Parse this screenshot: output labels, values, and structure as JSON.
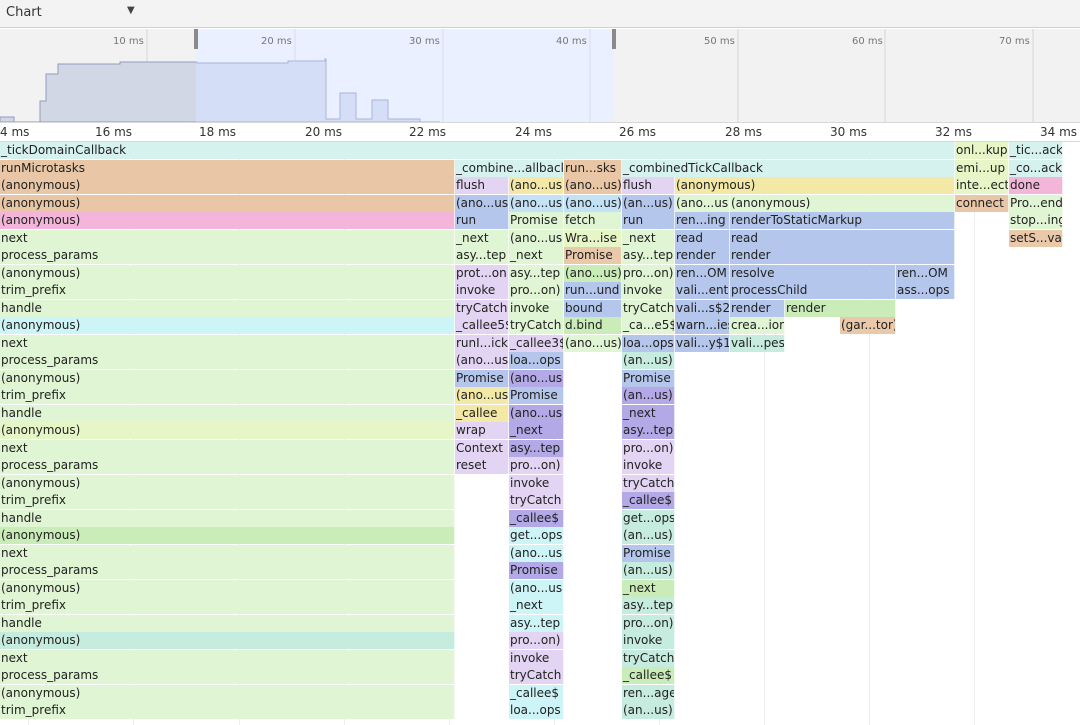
{
  "toolbar": {
    "view_select": "Chart"
  },
  "overview": {
    "ticks": [
      "10 ms",
      "20 ms",
      "30 ms",
      "40 ms",
      "50 ms",
      "60 ms",
      "70 ms"
    ]
  },
  "ruler": {
    "ticks": [
      "4 ms",
      "16 ms",
      "18 ms",
      "20 ms",
      "22 ms",
      "24 ms",
      "26 ms",
      "28 ms",
      "30 ms",
      "32 ms",
      "34 ms"
    ]
  },
  "colors": {
    "teal": "#d6f2ef",
    "peach": "#e8c6a6",
    "pink": "#f3b6da",
    "green": "#dff5d3",
    "cyan": "#cdf4f6",
    "lime": "#e6f6c6",
    "lightgreen": "#c9ecb8",
    "mint": "#c6ebdf",
    "lavender": "#e2d4f2",
    "yellow": "#f3e8a6",
    "blue": "#b4c6ec",
    "purple": "#b3a9e6",
    "sky": "#c3e2f6",
    "tan": "#e9c9a9"
  },
  "flame": {
    "bars": [
      {
        "label": "_tickDomainCallback",
        "color": "teal"
      },
      {
        "label": "onl...kup",
        "color": "lime"
      },
      {
        "label": "_tic...ack",
        "color": "teal"
      },
      {
        "label": "runMicrotasks",
        "color": "peach"
      },
      {
        "label": "_combine...allback",
        "color": "teal"
      },
      {
        "label": "run...sks",
        "color": "peach"
      },
      {
        "label": "_combinedTickCallback",
        "color": "teal"
      },
      {
        "label": "emi...up",
        "color": "lime"
      },
      {
        "label": "_co...ack",
        "color": "teal"
      },
      {
        "label": "(anonymous)",
        "color": "peach"
      },
      {
        "label": "flush",
        "color": "lavender"
      },
      {
        "label": "(ano...us)",
        "color": "yellow"
      },
      {
        "label": "(ano...us)",
        "color": "peach"
      },
      {
        "label": "flush",
        "color": "lavender"
      },
      {
        "label": "(anonymous)",
        "color": "yellow"
      },
      {
        "label": "inte...ect",
        "color": "lime"
      },
      {
        "label": "done",
        "color": "pink"
      },
      {
        "label": "(anonymous)",
        "color": "peach"
      },
      {
        "label": "(ano...us)",
        "color": "blue"
      },
      {
        "label": "(ano...us)",
        "color": "sky"
      },
      {
        "label": "(ano...us)",
        "color": "sky"
      },
      {
        "label": "(an...us)",
        "color": "blue"
      },
      {
        "label": "(ano...us)",
        "color": "green"
      },
      {
        "label": "(anonymous)",
        "color": "green"
      },
      {
        "label": "connect",
        "color": "peach"
      },
      {
        "label": "Pro...end",
        "color": "green"
      },
      {
        "label": "(anonymous)",
        "color": "pink"
      },
      {
        "label": "run",
        "color": "blue"
      },
      {
        "label": "Promise",
        "color": "green"
      },
      {
        "label": "fetch",
        "color": "green"
      },
      {
        "label": "run",
        "color": "blue"
      },
      {
        "label": "ren...ing",
        "color": "blue"
      },
      {
        "label": "renderToStaticMarkup",
        "color": "blue"
      },
      {
        "label": "stop...ing",
        "color": "green"
      },
      {
        "label": "next",
        "color": "green"
      },
      {
        "label": "_next",
        "color": "green"
      },
      {
        "label": "(ano...us)",
        "color": "green"
      },
      {
        "label": "Wra...ise",
        "color": "lime"
      },
      {
        "label": "_next",
        "color": "green"
      },
      {
        "label": "read",
        "color": "blue"
      },
      {
        "label": "read",
        "color": "blue"
      },
      {
        "label": "setS...val",
        "color": "tan"
      },
      {
        "label": "process_params",
        "color": "green"
      },
      {
        "label": "asy...tep",
        "color": "green"
      },
      {
        "label": "_next",
        "color": "green"
      },
      {
        "label": "Promise",
        "color": "tan"
      },
      {
        "label": "asy...tep",
        "color": "green"
      },
      {
        "label": "render",
        "color": "blue"
      },
      {
        "label": "render",
        "color": "blue"
      },
      {
        "label": "(anonymous)",
        "color": "green"
      },
      {
        "label": "prot...on)",
        "color": "lavender"
      },
      {
        "label": "asy...tep",
        "color": "green"
      },
      {
        "label": "(ano...us)",
        "color": "lightgreen"
      },
      {
        "label": "pro...on)",
        "color": "green"
      },
      {
        "label": "ren...OM",
        "color": "blue"
      },
      {
        "label": "resolve",
        "color": "blue"
      },
      {
        "label": "ren...OM",
        "color": "blue"
      },
      {
        "label": "trim_prefix",
        "color": "green"
      },
      {
        "label": "invoke",
        "color": "lavender"
      },
      {
        "label": "pro...on)",
        "color": "green"
      },
      {
        "label": "run...und",
        "color": "blue"
      },
      {
        "label": "invoke",
        "color": "green"
      },
      {
        "label": "vali...ent",
        "color": "blue"
      },
      {
        "label": "processChild",
        "color": "blue"
      },
      {
        "label": "ass...ops",
        "color": "blue"
      },
      {
        "label": "handle",
        "color": "green"
      },
      {
        "label": "tryCatch",
        "color": "lavender"
      },
      {
        "label": "invoke",
        "color": "green"
      },
      {
        "label": "bound",
        "color": "blue"
      },
      {
        "label": "tryCatch",
        "color": "green"
      },
      {
        "label": "vali...s$2",
        "color": "blue"
      },
      {
        "label": "render",
        "color": "blue"
      },
      {
        "label": "render",
        "color": "lightgreen"
      },
      {
        "label": "(anonymous)",
        "color": "cyan"
      },
      {
        "label": "_callee5$",
        "color": "lavender"
      },
      {
        "label": "tryCatch",
        "color": "green"
      },
      {
        "label": "d.bind",
        "color": "lightgreen"
      },
      {
        "label": "_ca...e5$",
        "color": "green"
      },
      {
        "label": "warn...ies",
        "color": "blue"
      },
      {
        "label": "crea...ion",
        "color": "green"
      },
      {
        "label": "(gar...tor)",
        "color": "tan"
      },
      {
        "label": "next",
        "color": "green"
      },
      {
        "label": "runI...ick",
        "color": "lavender"
      },
      {
        "label": "_callee3$",
        "color": "lavender"
      },
      {
        "label": "(ano...us)",
        "color": "green"
      },
      {
        "label": "loa...ops",
        "color": "blue"
      },
      {
        "label": "vali...y$1",
        "color": "blue"
      },
      {
        "label": "vali...pes",
        "color": "mint"
      },
      {
        "label": "process_params",
        "color": "green"
      },
      {
        "label": "(ano...us)",
        "color": "lavender"
      },
      {
        "label": "loa...ops",
        "color": "blue"
      },
      {
        "label": "(an...us)",
        "color": "mint"
      },
      {
        "label": "(anonymous)",
        "color": "green"
      },
      {
        "label": "Promise",
        "color": "blue"
      },
      {
        "label": "(ano...us)",
        "color": "purple"
      },
      {
        "label": "Promise",
        "color": "blue"
      },
      {
        "label": "trim_prefix",
        "color": "green"
      },
      {
        "label": "(ano...us)",
        "color": "yellow"
      },
      {
        "label": "Promise",
        "color": "blue"
      },
      {
        "label": "(an...us)",
        "color": "purple"
      },
      {
        "label": "handle",
        "color": "green"
      },
      {
        "label": "_callee",
        "color": "yellow"
      },
      {
        "label": "(ano...us)",
        "color": "purple"
      },
      {
        "label": "_next",
        "color": "purple"
      },
      {
        "label": "(anonymous)",
        "color": "lime"
      },
      {
        "label": "wrap",
        "color": "lavender"
      },
      {
        "label": "_next",
        "color": "purple"
      },
      {
        "label": "asy...tep",
        "color": "purple"
      },
      {
        "label": "next",
        "color": "green"
      },
      {
        "label": "Context",
        "color": "lavender"
      },
      {
        "label": "asy...tep",
        "color": "purple"
      },
      {
        "label": "pro...on)",
        "color": "lavender"
      },
      {
        "label": "process_params",
        "color": "green"
      },
      {
        "label": "reset",
        "color": "lavender"
      },
      {
        "label": "pro...on)",
        "color": "lavender"
      },
      {
        "label": "invoke",
        "color": "lavender"
      },
      {
        "label": "(anonymous)",
        "color": "green"
      },
      {
        "label": "invoke",
        "color": "lavender"
      },
      {
        "label": "tryCatch",
        "color": "lavender"
      },
      {
        "label": "trim_prefix",
        "color": "green"
      },
      {
        "label": "tryCatch",
        "color": "lavender"
      },
      {
        "label": "_callee$",
        "color": "purple"
      },
      {
        "label": "handle",
        "color": "green"
      },
      {
        "label": "_callee$",
        "color": "purple"
      },
      {
        "label": "get...ops",
        "color": "mint"
      },
      {
        "label": "(anonymous)",
        "color": "lightgreen"
      },
      {
        "label": "get...ops",
        "color": "cyan"
      },
      {
        "label": "(an...us)",
        "color": "mint"
      },
      {
        "label": "next",
        "color": "green"
      },
      {
        "label": "(ano...us)",
        "color": "cyan"
      },
      {
        "label": "Promise",
        "color": "blue"
      },
      {
        "label": "process_params",
        "color": "green"
      },
      {
        "label": "Promise",
        "color": "purple"
      },
      {
        "label": "(an...us)",
        "color": "mint"
      },
      {
        "label": "(anonymous)",
        "color": "green"
      },
      {
        "label": "(ano...us)",
        "color": "cyan"
      },
      {
        "label": "_next",
        "color": "lightgreen"
      },
      {
        "label": "trim_prefix",
        "color": "green"
      },
      {
        "label": "_next",
        "color": "cyan"
      },
      {
        "label": "asy...tep",
        "color": "mint"
      },
      {
        "label": "handle",
        "color": "green"
      },
      {
        "label": "asy...tep",
        "color": "cyan"
      },
      {
        "label": "pro...on)",
        "color": "mint"
      },
      {
        "label": "(anonymous)",
        "color": "mint"
      },
      {
        "label": "pro...on)",
        "color": "lavender"
      },
      {
        "label": "invoke",
        "color": "mint"
      },
      {
        "label": "next",
        "color": "green"
      },
      {
        "label": "invoke",
        "color": "lavender"
      },
      {
        "label": "tryCatch",
        "color": "mint"
      },
      {
        "label": "process_params",
        "color": "green"
      },
      {
        "label": "tryCatch",
        "color": "lavender"
      },
      {
        "label": "_callee$",
        "color": "lightgreen"
      },
      {
        "label": "(anonymous)",
        "color": "green"
      },
      {
        "label": "_callee$",
        "color": "cyan"
      },
      {
        "label": "ren...age",
        "color": "mint"
      },
      {
        "label": "trim_prefix",
        "color": "green"
      },
      {
        "label": "loa...ops",
        "color": "cyan"
      },
      {
        "label": "(an...us)",
        "color": "mint"
      }
    ]
  }
}
